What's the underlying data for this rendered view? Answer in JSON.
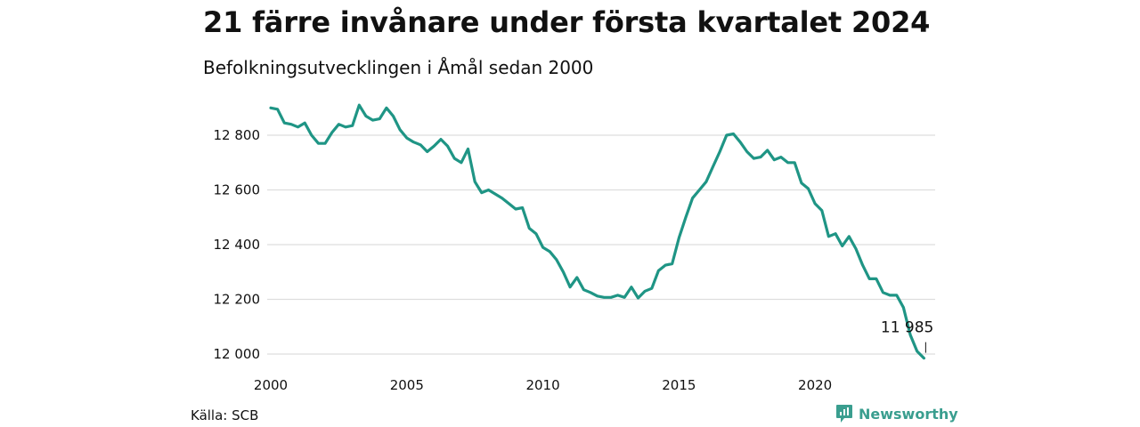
{
  "header": {
    "title": "21 färre invånare under första kvartalet 2024",
    "subtitle": "Befolkningsutvecklingen i Åmål sedan 2000"
  },
  "footer": {
    "source": "Källa: SCB",
    "brand": "Newsworthy"
  },
  "colors": {
    "line": "#1f9585",
    "grid": "#dddddd",
    "brand": "#3a9e8f"
  },
  "chart_data": {
    "type": "line",
    "title": "21 färre invånare under första kvartalet 2024",
    "subtitle": "Befolkningsutvecklingen i Åmål sedan 2000",
    "xlabel": "",
    "ylabel": "",
    "xlim": [
      2000,
      2024.25
    ],
    "ylim": [
      11985,
      12920
    ],
    "x_ticks": [
      2000,
      2005,
      2010,
      2015,
      2020
    ],
    "x_tick_labels": [
      "2000",
      "2005",
      "2010",
      "2015",
      "2020"
    ],
    "y_ticks": [
      12000,
      12200,
      12400,
      12600,
      12800
    ],
    "y_tick_labels": [
      "12 000",
      "12 200",
      "12 400",
      "12 600",
      "12 800"
    ],
    "grid": true,
    "legend": "none",
    "annotation": {
      "x": 2024.0,
      "y": 11985,
      "label": "11 985"
    },
    "series": [
      {
        "x": [
          2000.0,
          2000.25,
          2000.5,
          2000.75,
          2001.0,
          2001.25,
          2001.5,
          2001.75,
          2002.0,
          2002.25,
          2002.5,
          2002.75,
          2003.0,
          2003.25,
          2003.5,
          2003.75,
          2004.0,
          2004.25,
          2004.5,
          2004.75,
          2005.0,
          2005.25,
          2005.5,
          2005.75,
          2006.0,
          2006.25,
          2006.5,
          2006.75,
          2007.0,
          2007.25,
          2007.5,
          2007.75,
          2008.0,
          2008.25,
          2008.5,
          2008.75,
          2009.0,
          2009.25,
          2009.5,
          2009.75,
          2010.0,
          2010.25,
          2010.5,
          2010.75,
          2011.0,
          2011.25,
          2011.5,
          2011.75,
          2012.0,
          2012.25,
          2012.5,
          2012.75,
          2013.0,
          2013.25,
          2013.5,
          2013.75,
          2014.0,
          2014.25,
          2014.5,
          2014.75,
          2015.0,
          2015.25,
          2015.5,
          2015.75,
          2016.0,
          2016.25,
          2016.5,
          2016.75,
          2017.0,
          2017.25,
          2017.5,
          2017.75,
          2018.0,
          2018.25,
          2018.5,
          2018.75,
          2019.0,
          2019.25,
          2019.5,
          2019.75,
          2020.0,
          2020.25,
          2020.5,
          2020.75,
          2021.0,
          2021.25,
          2021.5,
          2021.75,
          2022.0,
          2022.25,
          2022.5,
          2022.75,
          2023.0,
          2023.25,
          2023.5,
          2023.75,
          2024.0
        ],
        "values": [
          12900,
          12895,
          12845,
          12840,
          12830,
          12845,
          12800,
          12770,
          12770,
          12810,
          12840,
          12830,
          12835,
          12910,
          12870,
          12855,
          12860,
          12900,
          12870,
          12820,
          12790,
          12775,
          12765,
          12740,
          12760,
          12785,
          12760,
          12715,
          12700,
          12750,
          12630,
          12590,
          12600,
          12585,
          12570,
          12550,
          12530,
          12535,
          12460,
          12440,
          12390,
          12375,
          12345,
          12300,
          12245,
          12280,
          12235,
          12225,
          12212,
          12207,
          12207,
          12215,
          12207,
          12245,
          12205,
          12230,
          12240,
          12305,
          12325,
          12330,
          12425,
          12500,
          12570,
          12600,
          12630,
          12685,
          12740,
          12800,
          12805,
          12775,
          12740,
          12715,
          12720,
          12745,
          12710,
          12720,
          12700,
          12700,
          12625,
          12605,
          12550,
          12525,
          12430,
          12440,
          12395,
          12430,
          12385,
          12325,
          12275,
          12275,
          12225,
          12215,
          12215,
          12170,
          12070,
          12010,
          11985
        ]
      }
    ]
  }
}
